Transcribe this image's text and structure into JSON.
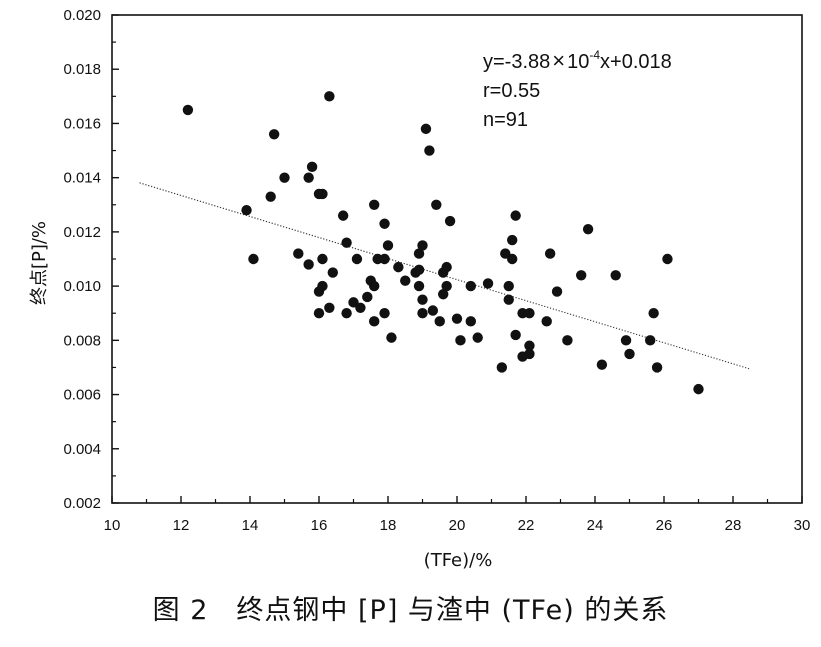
{
  "chart_data": {
    "type": "scatter",
    "title": "",
    "xlabel": "(TFe)/%",
    "ylabel": "终点[P]/%",
    "xlim": [
      10,
      30
    ],
    "ylim": [
      0.002,
      0.02
    ],
    "x_ticks": [
      "10",
      "12",
      "14",
      "16",
      "18",
      "20",
      "22",
      "24",
      "26",
      "28",
      "30"
    ],
    "y_ticks": [
      "0.002",
      "0.004",
      "0.006",
      "0.008",
      "0.010",
      "0.012",
      "0.014",
      "0.016",
      "0.018",
      "0.020"
    ],
    "grid": false,
    "annotation": {
      "equation_prefix": "y=-3.88",
      "equation_times": "×",
      "equation_base": "10",
      "equation_exponent": "-4",
      "equation_suffix": "x+0.018",
      "r_text": "r=0.55",
      "n_text": "n=91"
    },
    "fit_line": {
      "x": [
        10.8,
        28.5
      ],
      "y": [
        0.01381,
        0.00694
      ],
      "style": "dotted"
    },
    "points": [
      [
        12.2,
        0.0165
      ],
      [
        13.9,
        0.0128
      ],
      [
        14.1,
        0.011
      ],
      [
        14.6,
        0.0133
      ],
      [
        14.7,
        0.0156
      ],
      [
        15.0,
        0.014
      ],
      [
        15.4,
        0.0112
      ],
      [
        15.7,
        0.014
      ],
      [
        15.8,
        0.0144
      ],
      [
        15.7,
        0.0108
      ],
      [
        16.0,
        0.0134
      ],
      [
        16.1,
        0.0134
      ],
      [
        16.1,
        0.011
      ],
      [
        16.0,
        0.0098
      ],
      [
        16.1,
        0.01
      ],
      [
        16.0,
        0.009
      ],
      [
        16.3,
        0.0092
      ],
      [
        16.3,
        0.017
      ],
      [
        16.4,
        0.0105
      ],
      [
        16.7,
        0.0126
      ],
      [
        16.8,
        0.0116
      ],
      [
        16.8,
        0.009
      ],
      [
        17.0,
        0.0094
      ],
      [
        17.1,
        0.011
      ],
      [
        17.2,
        0.0092
      ],
      [
        17.4,
        0.0096
      ],
      [
        17.5,
        0.0102
      ],
      [
        17.6,
        0.013
      ],
      [
        17.6,
        0.01
      ],
      [
        17.6,
        0.0087
      ],
      [
        17.7,
        0.011
      ],
      [
        17.9,
        0.009
      ],
      [
        17.9,
        0.011
      ],
      [
        17.9,
        0.0123
      ],
      [
        18.0,
        0.0115
      ],
      [
        18.1,
        0.0081
      ],
      [
        18.3,
        0.0107
      ],
      [
        18.5,
        0.0102
      ],
      [
        18.8,
        0.0105
      ],
      [
        18.9,
        0.0106
      ],
      [
        18.9,
        0.0112
      ],
      [
        19.0,
        0.0115
      ],
      [
        19.0,
        0.0095
      ],
      [
        18.9,
        0.01
      ],
      [
        19.0,
        0.009
      ],
      [
        19.1,
        0.0158
      ],
      [
        19.2,
        0.015
      ],
      [
        19.3,
        0.0091
      ],
      [
        19.4,
        0.013
      ],
      [
        19.5,
        0.0087
      ],
      [
        19.6,
        0.0097
      ],
      [
        19.6,
        0.0105
      ],
      [
        19.7,
        0.0107
      ],
      [
        19.7,
        0.01
      ],
      [
        19.8,
        0.0124
      ],
      [
        20.0,
        0.0088
      ],
      [
        20.1,
        0.008
      ],
      [
        20.4,
        0.0087
      ],
      [
        20.4,
        0.01
      ],
      [
        20.6,
        0.0081
      ],
      [
        20.9,
        0.0101
      ],
      [
        21.3,
        0.007
      ],
      [
        21.4,
        0.0112
      ],
      [
        21.5,
        0.0095
      ],
      [
        21.5,
        0.01
      ],
      [
        21.6,
        0.011
      ],
      [
        21.6,
        0.0117
      ],
      [
        21.7,
        0.0126
      ],
      [
        21.7,
        0.0082
      ],
      [
        21.9,
        0.009
      ],
      [
        21.9,
        0.0074
      ],
      [
        22.1,
        0.0078
      ],
      [
        22.1,
        0.0075
      ],
      [
        22.1,
        0.009
      ],
      [
        22.6,
        0.0087
      ],
      [
        22.7,
        0.0112
      ],
      [
        22.9,
        0.0098
      ],
      [
        23.2,
        0.008
      ],
      [
        23.6,
        0.0104
      ],
      [
        23.8,
        0.0121
      ],
      [
        24.2,
        0.0071
      ],
      [
        24.6,
        0.0104
      ],
      [
        24.9,
        0.008
      ],
      [
        25.0,
        0.0075
      ],
      [
        25.6,
        0.008
      ],
      [
        25.7,
        0.009
      ],
      [
        25.8,
        0.007
      ],
      [
        26.1,
        0.011
      ],
      [
        27.0,
        0.0062
      ]
    ]
  },
  "caption": "图 2　终点钢中 [P] 与渣中 (TFe) 的关系"
}
